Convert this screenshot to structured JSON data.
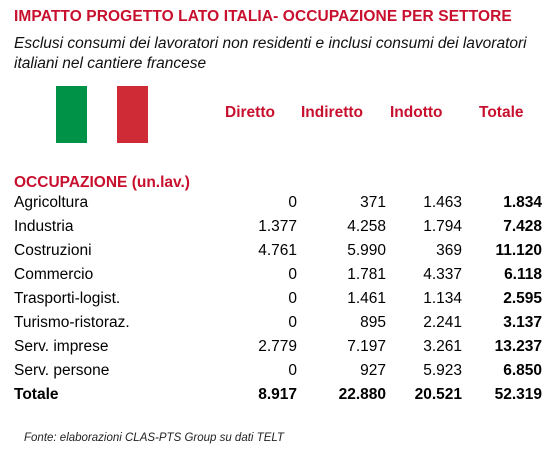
{
  "title": "IMPATTO PROGETTO LATO ITALIA- OCCUPAZIONE PER SETTORE",
  "subtitle": "Esclusi consumi dei lavoratori non residenti e inclusi consumi dei lavoratori italiani nel cantiere francese",
  "colors": {
    "accent": "#c8102e",
    "flag_green": "#009246",
    "flag_red": "#ce2b37"
  },
  "columns": [
    "Diretto",
    "Indiretto",
    "Indotto",
    "Totale"
  ],
  "section_label": "OCCUPAZIONE (un.lav.)",
  "rows": [
    {
      "label": "Agricoltura",
      "values": [
        "0",
        "371",
        "1.463",
        "1.834"
      ]
    },
    {
      "label": "Industria",
      "values": [
        "1.377",
        "4.258",
        "1.794",
        "7.428"
      ]
    },
    {
      "label": "Costruzioni",
      "values": [
        "4.761",
        "5.990",
        "369",
        "11.120"
      ]
    },
    {
      "label": "Commercio",
      "values": [
        "0",
        "1.781",
        "4.337",
        "6.118"
      ]
    },
    {
      "label": "Trasporti-logist.",
      "values": [
        "0",
        "1.461",
        "1.134",
        "2.595"
      ]
    },
    {
      "label": "Turismo-ristoraz.",
      "values": [
        "0",
        "895",
        "2.241",
        "3.137"
      ]
    },
    {
      "label": "Serv. imprese",
      "values": [
        "2.779",
        "7.197",
        "3.261",
        "13.237"
      ]
    },
    {
      "label": "Serv. persone",
      "values": [
        "0",
        "927",
        "5.923",
        "6.850"
      ]
    },
    {
      "label": "Totale",
      "values": [
        "8.917",
        "22.880",
        "20.521",
        "52.319"
      ]
    }
  ],
  "source": "Fonte: elaborazioni CLAS-PTS Group su dati TELT"
}
